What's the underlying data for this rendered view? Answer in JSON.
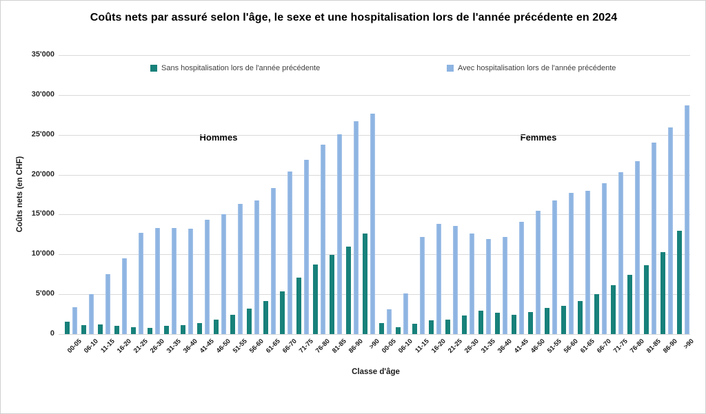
{
  "chart_data": {
    "type": "bar",
    "title": "Coûts nets par assuré selon l'âge, le sexe et une hospitalisation lors de l'année précédente en 2024",
    "xlabel": "Classe d'âge",
    "ylabel": "Coûts nets (en CHF)",
    "ylim": [
      0,
      35000
    ],
    "ytick_step": 5000,
    "ytick_labels": [
      "0",
      "5'000",
      "10'000",
      "15'000",
      "20'000",
      "25'000",
      "30'000",
      "35'000"
    ],
    "grid": "horizontal-only",
    "legend_position": "top-inside",
    "groups": [
      "Hommes",
      "Femmes"
    ],
    "categories": [
      "00-05",
      "06-10",
      "11-15",
      "16-20",
      "21-25",
      "26-30",
      "31-35",
      "36-40",
      "41-45",
      "46-50",
      "51-55",
      "56-60",
      "61-65",
      "66-70",
      "71-75",
      "76-80",
      "81-85",
      "86-90",
      ">90"
    ],
    "series": [
      {
        "name": "Sans hospitalisation lors de l'année précédente",
        "color": "#17817A",
        "values": {
          "Hommes": [
            1550,
            1100,
            1250,
            1050,
            900,
            800,
            1000,
            1150,
            1400,
            1800,
            2400,
            3200,
            4150,
            5400,
            7050,
            8700,
            9900,
            11000,
            12600
          ],
          "Femmes": [
            1400,
            900,
            1300,
            1750,
            1850,
            2350,
            2900,
            2700,
            2450,
            2800,
            3250,
            3550,
            4150,
            5000,
            6100,
            7450,
            8650,
            10250,
            13000
          ]
        }
      },
      {
        "name": "Avec hospitalisation lors de l'année précédente",
        "color": "#8DB4E2",
        "values": {
          "Hommes": [
            3400,
            5000,
            7500,
            9550,
            12700,
            13300,
            13350,
            13200,
            14350,
            15000,
            16300,
            16800,
            18300,
            20400,
            21900,
            23800,
            25100,
            26700,
            27700
          ],
          "Femmes": [
            3150,
            5100,
            12200,
            13800,
            13550,
            12650,
            11900,
            12150,
            14050,
            15450,
            16800,
            17700,
            18000,
            18950,
            20300,
            21700,
            24000,
            25900,
            28700
          ]
        }
      }
    ]
  }
}
